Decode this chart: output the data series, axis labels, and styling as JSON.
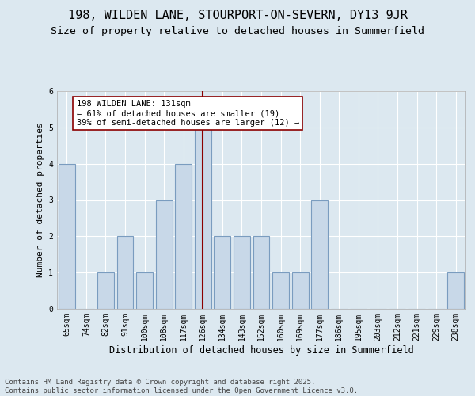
{
  "title1": "198, WILDEN LANE, STOURPORT-ON-SEVERN, DY13 9JR",
  "title2": "Size of property relative to detached houses in Summerfield",
  "xlabel": "Distribution of detached houses by size in Summerfield",
  "ylabel": "Number of detached properties",
  "categories": [
    "65sqm",
    "74sqm",
    "82sqm",
    "91sqm",
    "100sqm",
    "108sqm",
    "117sqm",
    "126sqm",
    "134sqm",
    "143sqm",
    "152sqm",
    "160sqm",
    "169sqm",
    "177sqm",
    "186sqm",
    "195sqm",
    "203sqm",
    "212sqm",
    "221sqm",
    "229sqm",
    "238sqm"
  ],
  "values": [
    4,
    0,
    1,
    2,
    1,
    3,
    4,
    5,
    2,
    2,
    2,
    1,
    1,
    3,
    0,
    0,
    0,
    0,
    0,
    0,
    1
  ],
  "bar_color": "#c8d8e8",
  "bar_edgecolor": "#7a9cbf",
  "bar_linewidth": 0.8,
  "vline_x": 7,
  "vline_color": "#8b0000",
  "vline_linewidth": 1.5,
  "annotation_text": "198 WILDEN LANE: 131sqm\n← 61% of detached houses are smaller (19)\n39% of semi-detached houses are larger (12) →",
  "annotation_box_edgecolor": "#8b0000",
  "annotation_box_facecolor": "#ffffff",
  "ylim": [
    0,
    6
  ],
  "yticks": [
    0,
    1,
    2,
    3,
    4,
    5,
    6
  ],
  "background_color": "#dce8f0",
  "plot_background": "#dce8f0",
  "footer": "Contains HM Land Registry data © Crown copyright and database right 2025.\nContains public sector information licensed under the Open Government Licence v3.0.",
  "title1_fontsize": 11,
  "title2_fontsize": 9.5,
  "xlabel_fontsize": 8.5,
  "ylabel_fontsize": 8,
  "tick_fontsize": 7,
  "footer_fontsize": 6.5,
  "annot_fontsize": 7.5
}
